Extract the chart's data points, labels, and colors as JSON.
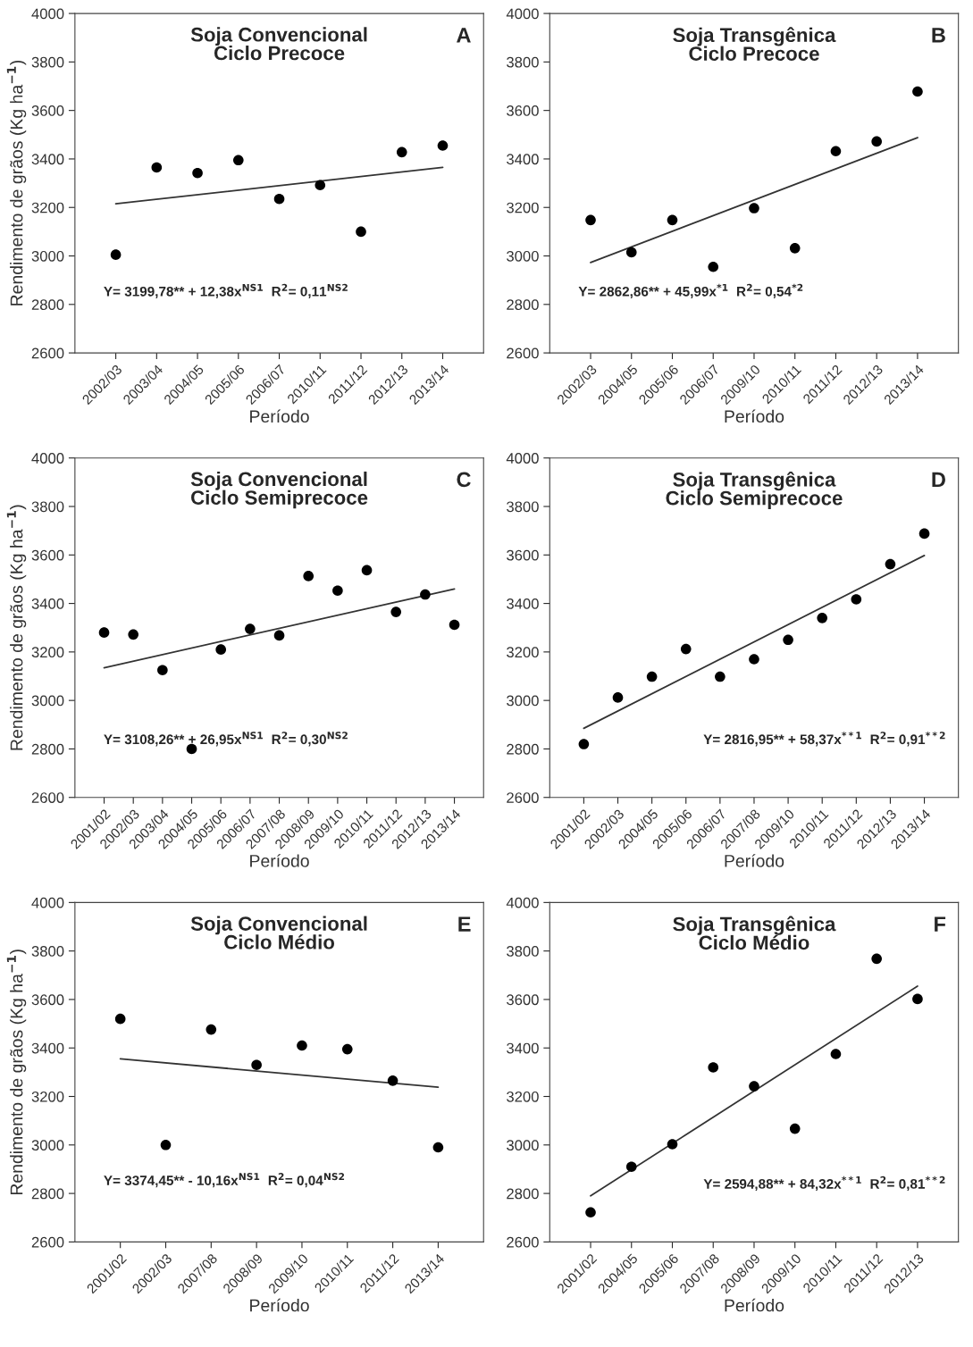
{
  "chart_data": [
    {
      "type": "scatter",
      "title": "Soja Convencional\nCiclo Precoce",
      "xlabel": "Período",
      "ylabel": "Rendimento de grãos (Kg ha$^{−1}$)",
      "categories": [
        "2002/03",
        "2003/04",
        "2004/05",
        "2005/06",
        "2006/07",
        "2010/11",
        "2011/12",
        "2012/13",
        "2013/14"
      ],
      "series": [
        {
          "marker": "circle",
          "color": "#000000",
          "values": [
            3005,
            3365,
            3342,
            3395,
            3235,
            3292,
            3100,
            3428,
            3455
          ]
        },
        {
          "type": "line",
          "color": "#333333",
          "values": [
            3215,
            null,
            null,
            null,
            null,
            null,
            null,
            null,
            3365
          ]
        }
      ],
      "ylim": [
        2600,
        4000
      ],
      "yticks": [
        2600,
        2800,
        3000,
        3200,
        3400,
        3600,
        3800,
        4000
      ],
      "annotations": [
        "A",
        "Y= 3199,78** + 12,38x$^{NS1}$  R$^{2}$= 0,11$^{NS2}$"
      ]
    },
    {
      "type": "scatter",
      "title": "Soja Transgênica\nCiclo Precoce",
      "xlabel": "Período",
      "categories": [
        "2002/03",
        "2004/05",
        "2005/06",
        "2006/07",
        "2009/10",
        "2010/11",
        "2011/12",
        "2012/13",
        "2013/14"
      ],
      "series": [
        {
          "marker": "circle",
          "color": "#000000",
          "values": [
            3148,
            3015,
            3148,
            2955,
            3197,
            3032,
            3432,
            3472,
            3678
          ]
        },
        {
          "type": "line",
          "color": "#333333",
          "values": [
            2973,
            null,
            null,
            null,
            null,
            null,
            null,
            null,
            3488
          ]
        }
      ],
      "ylim": [
        2600,
        4000
      ],
      "yticks": [
        2600,
        2800,
        3000,
        3200,
        3400,
        3600,
        3800,
        4000
      ],
      "annotations": [
        "B",
        "Y= 2862,86** + 45,99x$^{*1}$  R$^{2}$= 0,54$^{*2}$"
      ]
    },
    {
      "type": "scatter",
      "title": "Soja Convencional\nCiclo Semiprecoce",
      "xlabel": "Período",
      "ylabel": "Rendimento de grãos (Kg ha$^{−1}$)",
      "categories": [
        "2001/02",
        "2002/03",
        "2003/04",
        "2004/05",
        "2005/06",
        "2006/07",
        "2007/08",
        "2008/09",
        "2009/10",
        "2010/11",
        "2011/12",
        "2012/13",
        "2013/14"
      ],
      "series": [
        {
          "marker": "circle",
          "color": "#000000",
          "values": [
            3280,
            3272,
            3125,
            2800,
            3210,
            3295,
            3268,
            3513,
            3453,
            3537,
            3365,
            3437,
            3312
          ]
        },
        {
          "type": "line",
          "color": "#333333",
          "values": [
            3135,
            null,
            null,
            null,
            null,
            null,
            null,
            null,
            null,
            null,
            null,
            null,
            3460
          ]
        }
      ],
      "ylim": [
        2600,
        4000
      ],
      "yticks": [
        2600,
        2800,
        3000,
        3200,
        3400,
        3600,
        3800,
        4000
      ],
      "annotations": [
        "C",
        "Y= 3108,26** + 26,95x$^{NS1}$  R$^{2}$= 0,30$^{NS2}$"
      ]
    },
    {
      "type": "scatter",
      "title": "Soja Transgênica\nCiclo Semiprecoce",
      "xlabel": "Período",
      "categories": [
        "2001/02",
        "2002/03",
        "2004/05",
        "2005/06",
        "2006/07",
        "2007/08",
        "2009/10",
        "2010/11",
        "2011/12",
        "2012/13",
        "2013/14"
      ],
      "series": [
        {
          "marker": "circle",
          "color": "#000000",
          "values": [
            2820,
            3012,
            3098,
            3212,
            3098,
            3170,
            3250,
            3340,
            3417,
            3562,
            3688
          ]
        },
        {
          "type": "line",
          "color": "#333333",
          "values": [
            2885,
            null,
            null,
            null,
            null,
            null,
            null,
            null,
            null,
            null,
            3598
          ]
        }
      ],
      "ylim": [
        2600,
        4000
      ],
      "yticks": [
        2600,
        2800,
        3000,
        3200,
        3400,
        3600,
        3800,
        4000
      ],
      "annotations": [
        "D",
        "Y= 2816,95** + 58,37x$^{**1}$  R$^{2}$= 0,91$^{**2}$"
      ]
    },
    {
      "type": "scatter",
      "title": "Soja Convencional\nCiclo Médio",
      "xlabel": "Período",
      "ylabel": "Rendimento de grãos (Kg ha$^{−1}$)",
      "categories": [
        "2001/02",
        "2002/03",
        "2007/08",
        "2008/09",
        "2009/10",
        "2010/11",
        "2011/12",
        "2013/14"
      ],
      "series": [
        {
          "marker": "circle",
          "color": "#000000",
          "values": [
            3520,
            3000,
            3476,
            3330,
            3410,
            3395,
            3265,
            2990
          ]
        },
        {
          "type": "line",
          "color": "#333333",
          "values": [
            3355,
            null,
            null,
            null,
            null,
            null,
            null,
            3238
          ]
        }
      ],
      "ylim": [
        2600,
        4000
      ],
      "yticks": [
        2600,
        2800,
        3000,
        3200,
        3400,
        3600,
        3800,
        4000
      ],
      "annotations": [
        "E",
        "Y= 3374,45** - 10,16x$^{NS1}$  R$^{2}$= 0,04$^{NS2}$"
      ]
    },
    {
      "type": "scatter",
      "title": "Soja Transgênica\nCiclo Médio",
      "xlabel": "Período",
      "categories": [
        "2001/02",
        "2004/05",
        "2005/06",
        "2007/08",
        "2008/09",
        "2009/10",
        "2010/11",
        "2011/12",
        "2012/13"
      ],
      "series": [
        {
          "marker": "circle",
          "color": "#000000",
          "values": [
            2722,
            2910,
            3003,
            3320,
            3242,
            3067,
            3375,
            3768,
            3602
          ]
        },
        {
          "type": "line",
          "color": "#333333",
          "values": [
            2790,
            null,
            null,
            null,
            null,
            null,
            null,
            null,
            3655
          ]
        }
      ],
      "ylim": [
        2600,
        4000
      ],
      "yticks": [
        2600,
        2800,
        3000,
        3200,
        3400,
        3600,
        3800,
        4000
      ],
      "annotations": [
        "F",
        "Y= 2594,88** + 84,32x$^{**1}$  R$^{2}$= 0,81$^{**2}$"
      ]
    }
  ]
}
